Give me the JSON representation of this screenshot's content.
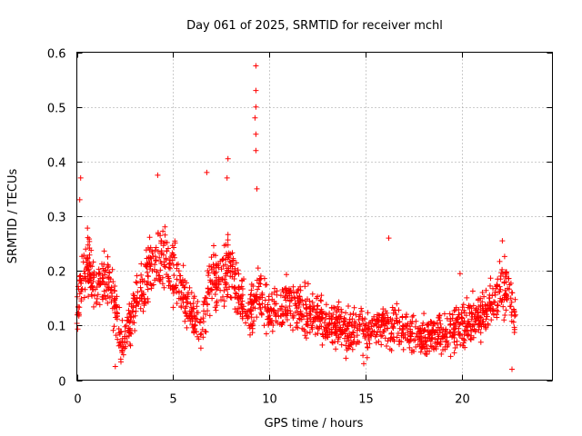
{
  "chart_data": {
    "type": "scatter",
    "title": "Day 061 of 2025, SRMTID for receiver mchl",
    "xlabel": "GPS time / hours",
    "ylabel": "SRMTID / TECUs",
    "xlim": [
      0,
      24.7
    ],
    "ylim": [
      0,
      0.6
    ],
    "x_ticks": [
      0,
      5,
      10,
      15,
      20
    ],
    "x_tick_labels": [
      "0",
      "5",
      "10",
      "15",
      "20"
    ],
    "y_ticks": [
      0,
      0.1,
      0.2,
      0.3,
      0.4,
      0.5,
      0.6
    ],
    "y_tick_labels": [
      "0",
      "0.1",
      "0.2",
      "0.3",
      "0.4",
      "0.5",
      "0.6"
    ],
    "grid": true,
    "marker": "+",
    "color": "#ff0000",
    "series_profile": {
      "name": "SRMTID",
      "note": "dense scatter; approximate local mean level vs hour",
      "x": [
        0,
        0.3,
        0.6,
        1.0,
        1.5,
        2.0,
        2.3,
        2.6,
        3.0,
        3.5,
        4.0,
        4.5,
        5.0,
        5.5,
        6.0,
        6.5,
        7.0,
        7.5,
        8.0,
        8.5,
        9.0,
        9.5,
        10.0,
        11.0,
        12.0,
        13.0,
        14.0,
        15.0,
        16.0,
        17.0,
        18.0,
        19.0,
        20.0,
        21.0,
        22.0,
        22.5,
        22.8
      ],
      "y": [
        0.12,
        0.2,
        0.21,
        0.16,
        0.19,
        0.13,
        0.07,
        0.09,
        0.14,
        0.17,
        0.22,
        0.23,
        0.2,
        0.16,
        0.11,
        0.1,
        0.19,
        0.18,
        0.2,
        0.15,
        0.12,
        0.16,
        0.12,
        0.14,
        0.12,
        0.11,
        0.09,
        0.09,
        0.1,
        0.09,
        0.08,
        0.09,
        0.1,
        0.12,
        0.16,
        0.17,
        0.1
      ]
    },
    "peaks": [
      {
        "x": 9.3,
        "y": 0.575
      },
      {
        "x": 9.3,
        "y": 0.53
      },
      {
        "x": 9.3,
        "y": 0.5
      },
      {
        "x": 9.25,
        "y": 0.48
      },
      {
        "x": 9.3,
        "y": 0.45
      },
      {
        "x": 9.3,
        "y": 0.42
      },
      {
        "x": 7.85,
        "y": 0.405
      },
      {
        "x": 6.75,
        "y": 0.38
      },
      {
        "x": 4.2,
        "y": 0.375
      },
      {
        "x": 7.8,
        "y": 0.37
      },
      {
        "x": 0.2,
        "y": 0.37
      },
      {
        "x": 9.35,
        "y": 0.35
      },
      {
        "x": 0.15,
        "y": 0.33
      },
      {
        "x": 16.2,
        "y": 0.26
      },
      {
        "x": 22.1,
        "y": 0.255
      },
      {
        "x": 19.9,
        "y": 0.195
      },
      {
        "x": 22.6,
        "y": 0.02
      },
      {
        "x": 2.0,
        "y": 0.025
      },
      {
        "x": 14.9,
        "y": 0.03
      }
    ]
  }
}
